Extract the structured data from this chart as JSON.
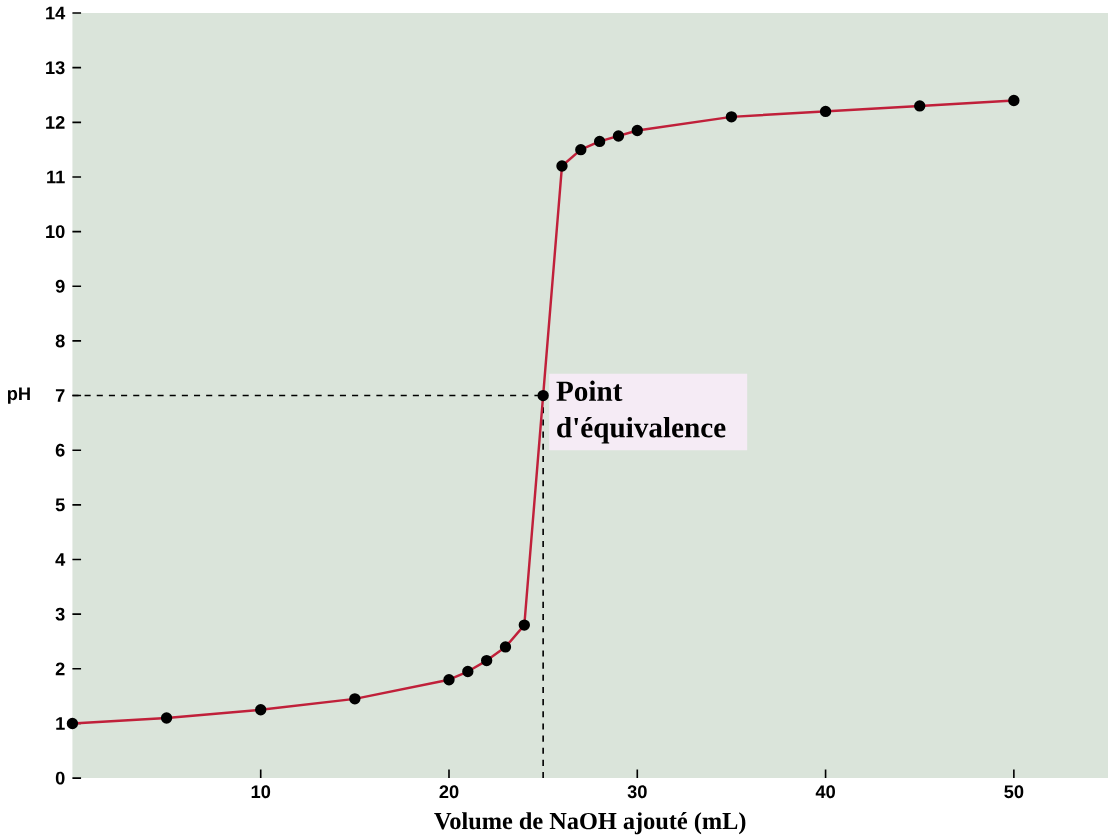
{
  "chart_data": {
    "type": "line",
    "xlabel": "Volume de NaOH ajouté (mL)",
    "ylabel": "pH",
    "x": [
      0,
      5,
      10,
      15,
      20,
      21,
      22,
      23,
      24,
      25,
      26,
      27,
      28,
      29,
      30,
      35,
      40,
      45,
      50
    ],
    "series": [
      {
        "color": "#c0203a",
        "values": [
          1,
          1.1,
          1.25,
          1.45,
          1.8,
          1.95,
          2.15,
          2.4,
          2.8,
          7,
          11.2,
          11.5,
          11.65,
          11.75,
          11.85,
          12.1,
          12.2,
          12.3,
          12.4
        ]
      }
    ],
    "xlim": [
      0,
      55
    ],
    "ylim": [
      0,
      14
    ],
    "xticks": [
      10,
      20,
      30,
      40,
      50
    ],
    "yticks": [
      0,
      1,
      2,
      3,
      4,
      5,
      6,
      7,
      8,
      9,
      10,
      11,
      12,
      13,
      14
    ],
    "marker": "circle",
    "line_style": "solid",
    "ref_lines": [
      {
        "axis": "y",
        "value": 7,
        "line_style": "dashed",
        "color": "#000000"
      },
      {
        "axis": "x",
        "value": 25,
        "line_style": "dashed",
        "color": "#000000"
      }
    ],
    "annotations": [
      {
        "text": "Point d'équivalence",
        "x": 25,
        "y": 7
      }
    ]
  }
}
